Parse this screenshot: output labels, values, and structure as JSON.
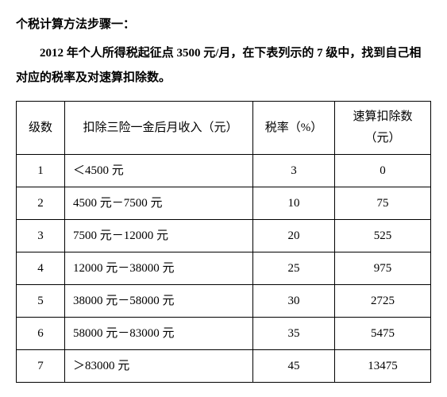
{
  "title": "个税计算方法步骤一：",
  "intro": "2012 年个人所得税起征点 3500 元/月，在下表列示的 7 级中，找到自己相对应的税率及对速算扣除数。",
  "table": {
    "columns": {
      "level": "级数",
      "income": "扣除三险一金后月收入（元）",
      "rate": "税率（%）",
      "deduct_line1": "速算扣除数",
      "deduct_line2": "（元）"
    },
    "rows": [
      {
        "level": "1",
        "income": "＜4500 元",
        "rate": "3",
        "deduct": "0"
      },
      {
        "level": "2",
        "income": "4500 元－7500 元",
        "rate": "10",
        "deduct": "75"
      },
      {
        "level": "3",
        "income": "7500 元－12000 元",
        "rate": "20",
        "deduct": "525"
      },
      {
        "level": "4",
        "income": "12000 元－38000 元",
        "rate": "25",
        "deduct": "975"
      },
      {
        "level": "5",
        "income": "38000 元－58000 元",
        "rate": "30",
        "deduct": "2725"
      },
      {
        "level": "6",
        "income": "58000 元－83000 元",
        "rate": "35",
        "deduct": "5475"
      },
      {
        "level": "7",
        "income": "＞83000 元",
        "rate": "45",
        "deduct": "13475"
      }
    ]
  }
}
